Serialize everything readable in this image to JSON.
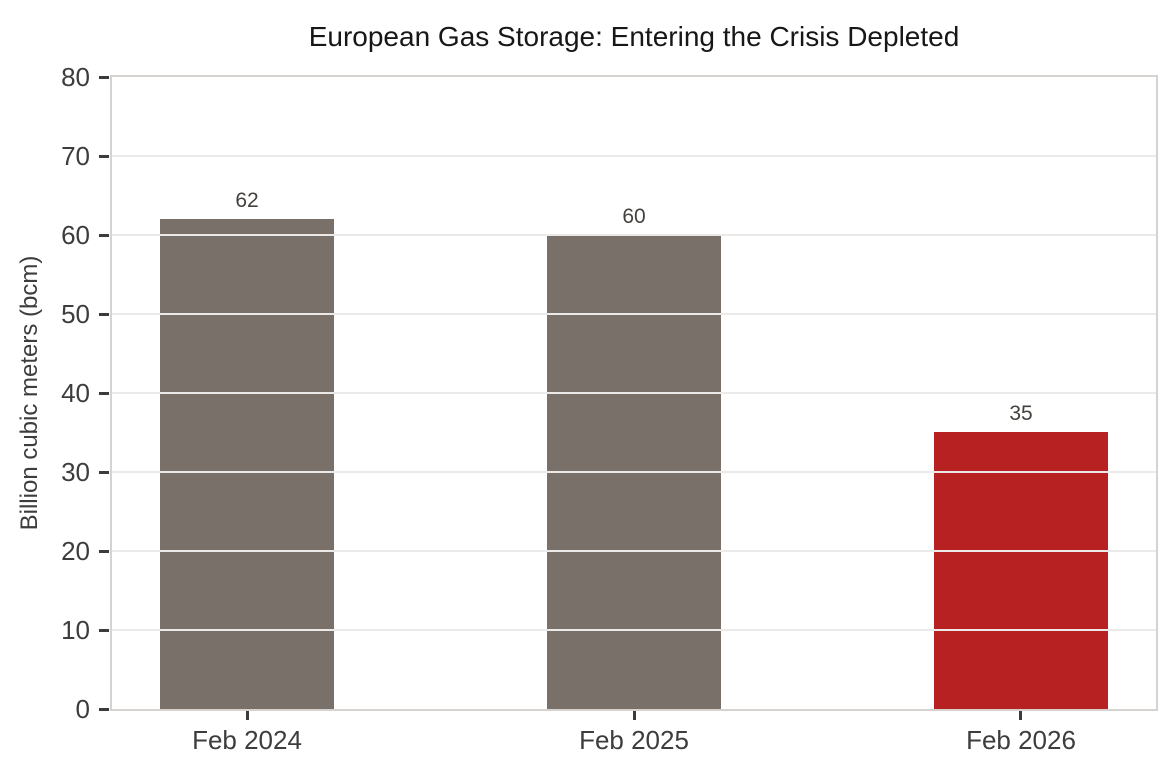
{
  "chart_data": {
    "type": "bar",
    "title": "European Gas Storage: Entering the Crisis Depleted",
    "categories": [
      "Feb 2024",
      "Feb 2025",
      "Feb 2026"
    ],
    "values": [
      62,
      60,
      35
    ],
    "value_labels": [
      "62",
      "60",
      "35"
    ],
    "bar_colors": [
      "#787069",
      "#787069",
      "#b72121"
    ],
    "xlabel": "",
    "ylabel": "Billion cubic meters (bcm)",
    "ylim": [
      0,
      80
    ],
    "yticks": [
      0,
      10,
      20,
      30,
      40,
      50,
      60,
      70,
      80
    ],
    "grid": "horizontal gridlines drawn above bars",
    "legend": "none"
  },
  "colors": {
    "background": "#ffffff",
    "bar_gray": "#787069",
    "bar_red": "#b72121",
    "gridline": "#eceae8",
    "plot_border": "#d5d2cf",
    "tick_mark": "#3b3b3b",
    "tick_label": "#3d3d3d",
    "value_label": "#45413c",
    "title_text": "#171717"
  }
}
